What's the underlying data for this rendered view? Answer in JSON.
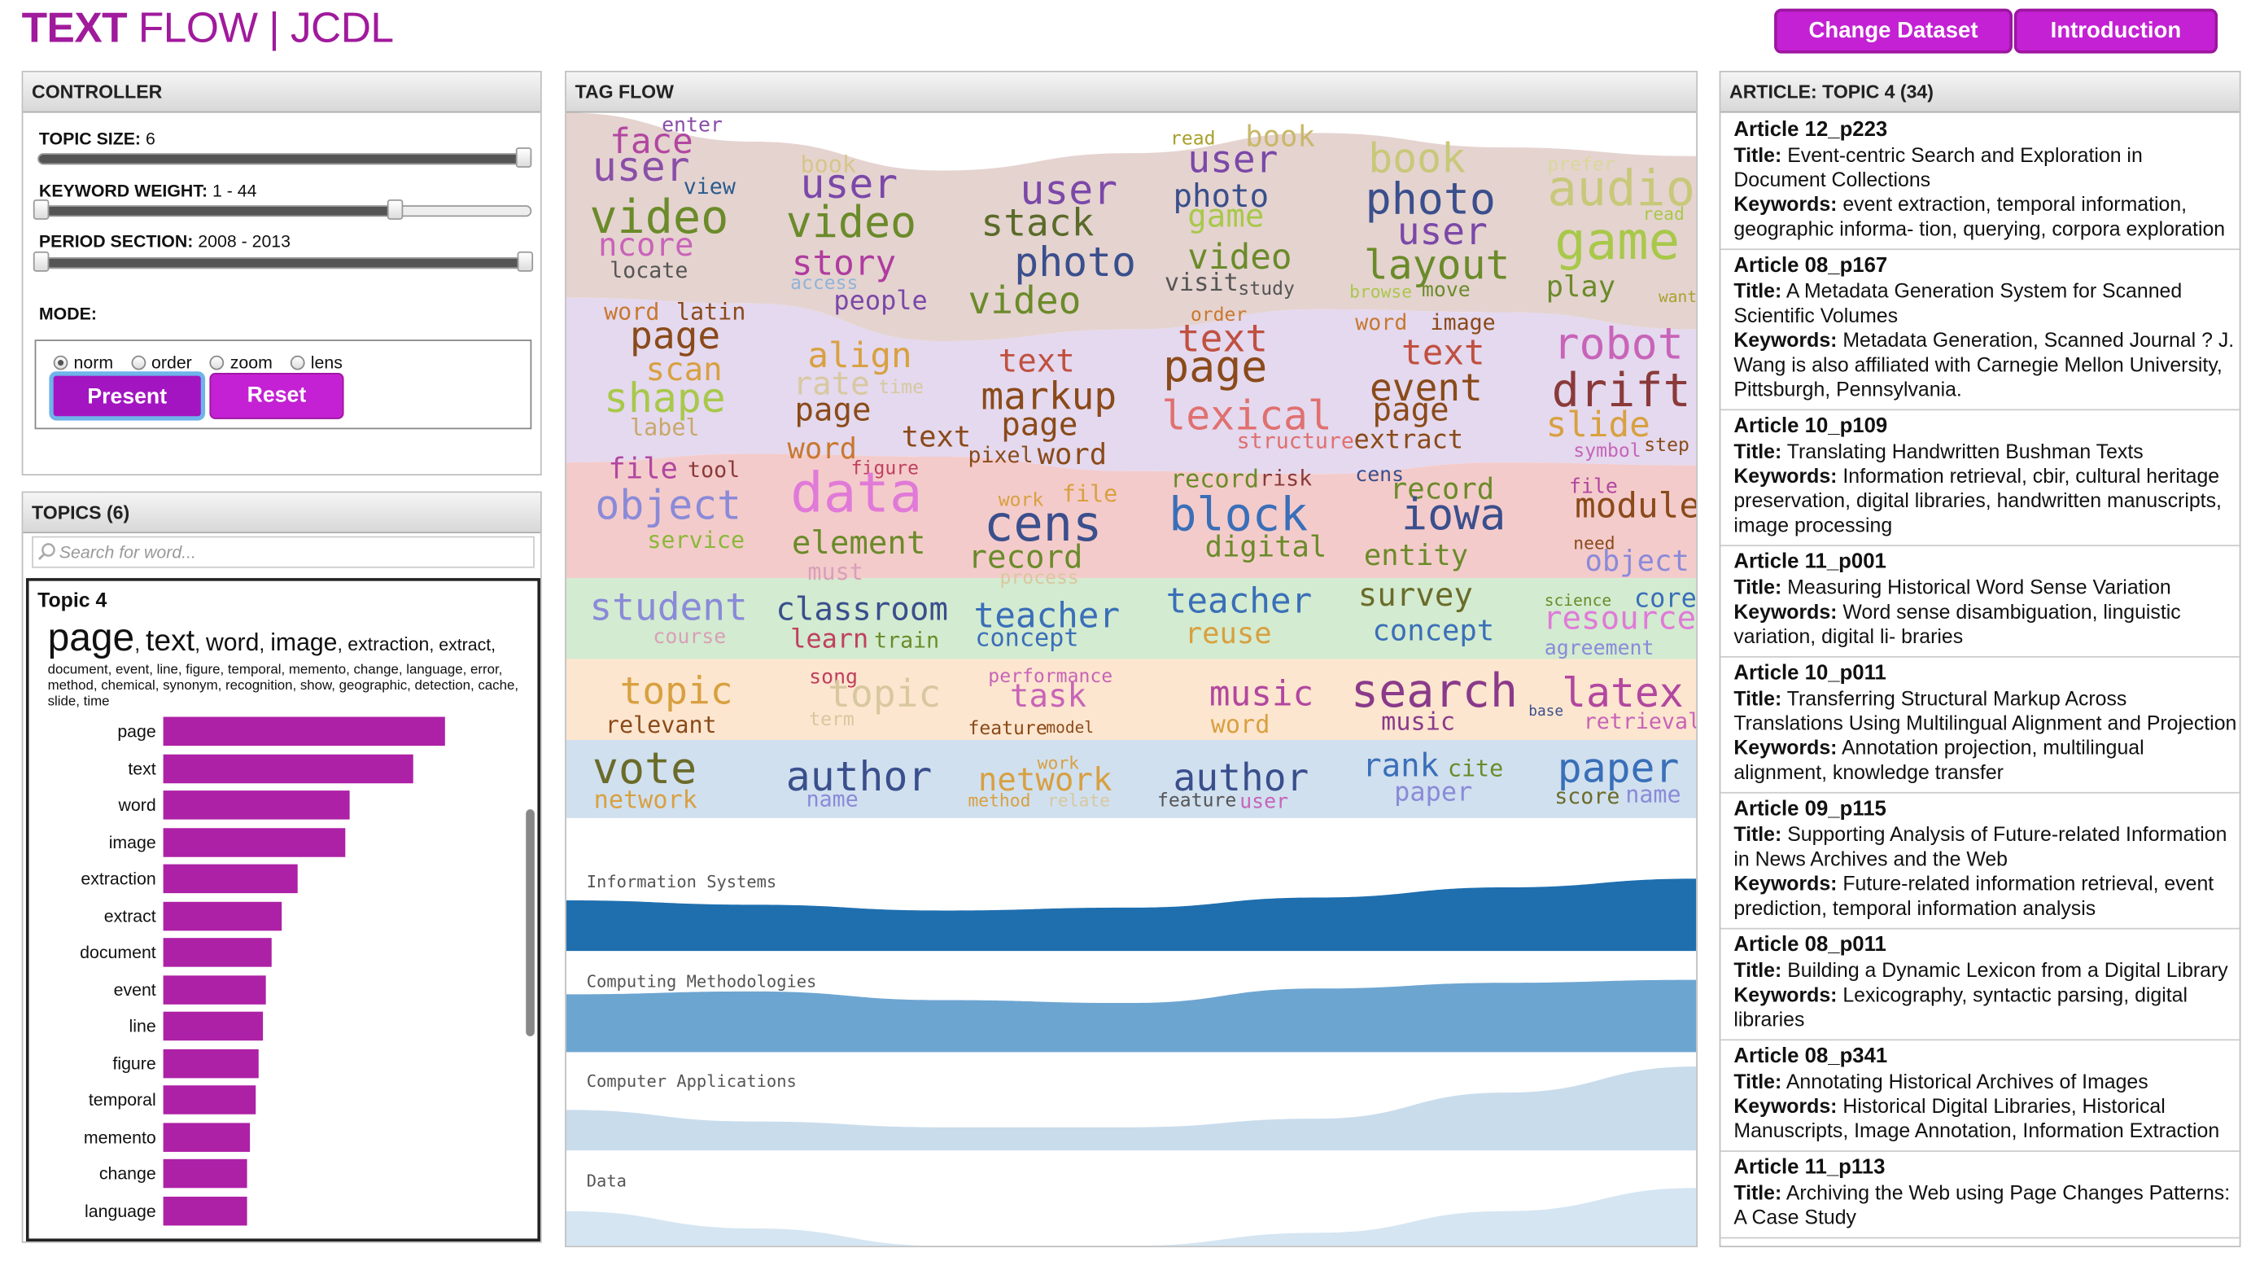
{
  "header": {
    "title_bold": "TEXT",
    "title_rest": " FLOW | JCDL",
    "change_dataset": "Change Dataset",
    "introduction": "Introduction"
  },
  "controller": {
    "heading": "CONTROLLER",
    "topic_size_label": "TOPIC SIZE:",
    "topic_size_value": "6",
    "keyword_weight_label": "KEYWORD WEIGHT:",
    "keyword_weight_value": "1 - 44",
    "period_label": "PERIOD SECTION:",
    "period_value": "2008 - 2013",
    "mode_label": "MODE:",
    "modes": [
      "norm",
      "order",
      "zoom",
      "lens"
    ],
    "selected_mode": "norm",
    "present": "Present",
    "reset": "Reset"
  },
  "topics": {
    "heading": "TOPICS (6)",
    "search_placeholder": "Search for word...",
    "topic_title": "Topic 4",
    "big_words": [
      "page",
      "text",
      "word",
      "image",
      "extraction",
      "extract,"
    ],
    "small_words": "document, event, line, figure, temporal, memento, change, language, error, method, chemical, synonym, recognition, show, geographic, detection, cache, slide, time",
    "bars": [
      {
        "label": "page",
        "value": 44
      },
      {
        "label": "text",
        "value": 39
      },
      {
        "label": "word",
        "value": 29
      },
      {
        "label": "image",
        "value": 28.5
      },
      {
        "label": "extraction",
        "value": 21
      },
      {
        "label": "extract",
        "value": 18.5
      },
      {
        "label": "document",
        "value": 17
      },
      {
        "label": "event",
        "value": 16
      },
      {
        "label": "line",
        "value": 15.5
      },
      {
        "label": "figure",
        "value": 15
      },
      {
        "label": "temporal",
        "value": 14.5
      },
      {
        "label": "memento",
        "value": 13.5
      },
      {
        "label": "change",
        "value": 13
      },
      {
        "label": "language",
        "value": 13
      }
    ]
  },
  "tagflow": {
    "heading": "TAG FLOW",
    "band_colors": [
      "#e5d3d0",
      "#e4d9ee",
      "#f4cbcb",
      "#d3ebd0",
      "#fde6cf",
      "#d0e0ef"
    ],
    "words": [
      [
        "enter",
        "#8a4fa8",
        14
      ],
      [
        "face",
        "#b247a0",
        24
      ],
      [
        "user",
        "#8a4fa8",
        28
      ],
      [
        "view",
        "#2a5b8c",
        15
      ],
      [
        "video",
        "#6b8b2a",
        32
      ],
      [
        "ncore",
        "#c864b8",
        22
      ],
      [
        "locate",
        "#555",
        15
      ],
      [
        "book",
        "#d7c58a",
        16
      ],
      [
        "user",
        "#7b48a8",
        28
      ],
      [
        "video",
        "#6b8b2a",
        30
      ],
      [
        "story",
        "#b03ca0",
        24
      ],
      [
        "access",
        "#8fb4d8",
        13
      ],
      [
        "people",
        "#7b48a8",
        18
      ],
      [
        "user",
        "#7b48a8",
        28
      ],
      [
        "stack",
        "#5a6b2a",
        26
      ],
      [
        "photo",
        "#3a4f8c",
        28
      ],
      [
        "video",
        "#6b8b2a",
        26
      ],
      [
        "read",
        "#a8a02c",
        13
      ],
      [
        "book",
        "#c8b86a",
        20
      ],
      [
        "user",
        "#7b48a8",
        26
      ],
      [
        "photo",
        "#3a4f8c",
        22
      ],
      [
        "game",
        "#a8c84a",
        22
      ],
      [
        "video",
        "#6b8b2a",
        24
      ],
      [
        "visit",
        "#555",
        17
      ],
      [
        "study",
        "#555",
        13
      ],
      [
        "book",
        "#c8c87a",
        28
      ],
      [
        "photo",
        "#3a4f8c",
        30
      ],
      [
        "user",
        "#7b48a8",
        26
      ],
      [
        "layout",
        "#6b8b2a",
        28
      ],
      [
        "browse",
        "#a8c84a",
        12
      ],
      [
        "move",
        "#6b8b2a",
        14
      ],
      [
        "prefer",
        "#d8d89a",
        13
      ],
      [
        "audio",
        "#c8c87a",
        34
      ],
      [
        "read",
        "#a8c84a",
        12
      ],
      [
        "game",
        "#a8c84a",
        36
      ],
      [
        "play",
        "#6b8b2a",
        20
      ],
      [
        "want",
        "#a8a02c",
        11
      ],
      [
        "word",
        "#c87830",
        16
      ],
      [
        "latin",
        "#8a4a1a",
        16
      ],
      [
        "page",
        "#8a4a1a",
        26
      ],
      [
        "scan",
        "#d8a040",
        22
      ],
      [
        "shape",
        "#a8c84a",
        28
      ],
      [
        "label",
        "#c8a86a",
        16
      ],
      [
        "align",
        "#d8a040",
        24
      ],
      [
        "rate",
        "#d8c8a0",
        22
      ],
      [
        "time",
        "#d8c8a0",
        13
      ],
      [
        "page",
        "#8a4a1a",
        22
      ],
      [
        "word",
        "#c87830",
        20
      ],
      [
        "text",
        "#8a4a1a",
        20
      ],
      [
        "figure",
        "#c04060",
        13
      ],
      [
        "text",
        "#c05040",
        22
      ],
      [
        "markup",
        "#8a4a1a",
        26
      ],
      [
        "page",
        "#8a4a1a",
        22
      ],
      [
        "pixel",
        "#8a4a1a",
        15
      ],
      [
        "word",
        "#8a4a1a",
        20
      ],
      [
        "order",
        "#c87830",
        13
      ],
      [
        "text",
        "#c05040",
        26
      ],
      [
        "page",
        "#8a4a1a",
        30
      ],
      [
        "lexical",
        "#e07070",
        28
      ],
      [
        "structure",
        "#e07070",
        15
      ],
      [
        "word",
        "#c87830",
        15
      ],
      [
        "image",
        "#8a4a1a",
        15
      ],
      [
        "text",
        "#c05040",
        24
      ],
      [
        "event",
        "#8a4a1a",
        26
      ],
      [
        "page",
        "#8a4a1a",
        22
      ],
      [
        "extract",
        "#8a4a1a",
        18
      ],
      [
        "robot",
        "#c864b8",
        30
      ],
      [
        "drift",
        "#8a3a3a",
        32
      ],
      [
        "slide",
        "#d8a040",
        24
      ],
      [
        "symbol",
        "#c864b8",
        13
      ],
      [
        "step",
        "#8a4a1a",
        13
      ],
      [
        "file",
        "#b247a0",
        20
      ],
      [
        "tool",
        "#8a3a3a",
        15
      ],
      [
        "object",
        "#8a8ad8",
        28
      ],
      [
        "service",
        "#8ab83a",
        16
      ],
      [
        "data",
        "#e07ad8",
        38
      ],
      [
        "element",
        "#6b8b2a",
        22
      ],
      [
        "must",
        "#d8a0b8",
        16
      ],
      [
        "work",
        "#d8a040",
        13
      ],
      [
        "file",
        "#d8a040",
        16
      ],
      [
        "cens",
        "#3a4f8c",
        34
      ],
      [
        "record",
        "#6b8b2a",
        22
      ],
      [
        "process",
        "#d8c8a0",
        13
      ],
      [
        "record",
        "#6b8b2a",
        17
      ],
      [
        "risk",
        "#8a3a3a",
        15
      ],
      [
        "block",
        "#3a6fb8",
        32
      ],
      [
        "digital",
        "#6b8b2a",
        20
      ],
      [
        "cens",
        "#3a4f8c",
        14
      ],
      [
        "record",
        "#6b8b2a",
        20
      ],
      [
        "iowa",
        "#3a4f8c",
        30
      ],
      [
        "entity",
        "#6b8b2a",
        20
      ],
      [
        "file",
        "#b247a0",
        14
      ],
      [
        "module",
        "#8a4a1a",
        24
      ],
      [
        "need",
        "#8a4a1a",
        12
      ],
      [
        "object",
        "#8a8ad8",
        20
      ],
      [
        "student",
        "#8a8ad8",
        26
      ],
      [
        "course",
        "#d8a0b8",
        14
      ],
      [
        "classroom",
        "#3a4f8c",
        22
      ],
      [
        "learn",
        "#c04060",
        18
      ],
      [
        "train",
        "#6b8b2a",
        15
      ],
      [
        "teacher",
        "#3a6fb8",
        24
      ],
      [
        "concept",
        "#3a6fb8",
        17
      ],
      [
        "teacher",
        "#3a6fb8",
        24
      ],
      [
        "reuse",
        "#d8a040",
        20
      ],
      [
        "survey",
        "#6b6b2a",
        22
      ],
      [
        "concept",
        "#3a6fb8",
        20
      ],
      [
        "science",
        "#6b8b2a",
        11
      ],
      [
        "core",
        "#3a6fb8",
        18
      ],
      [
        "resource",
        "#e07ad8",
        22
      ],
      [
        "agreement",
        "#8a8ad8",
        14
      ],
      [
        "topic",
        "#d8a040",
        26
      ],
      [
        "relevant",
        "#8a4a1a",
        16
      ],
      [
        "song",
        "#c04060",
        14
      ],
      [
        "topic",
        "#d8c8a0",
        26
      ],
      [
        "term",
        "#d8c8a0",
        13
      ],
      [
        "performance",
        "#c864b8",
        13
      ],
      [
        "task",
        "#c864b8",
        22
      ],
      [
        "feature",
        "#8a4a1a",
        13
      ],
      [
        "model",
        "#8a4a1a",
        11
      ],
      [
        "music",
        "#b247a0",
        24
      ],
      [
        "word",
        "#d8a040",
        17
      ],
      [
        "search",
        "#8a3a8a",
        32
      ],
      [
        "music",
        "#8a3a8a",
        17
      ],
      [
        "base",
        "#3a4f8c",
        10
      ],
      [
        "latex",
        "#b247a0",
        28
      ],
      [
        "retrieval",
        "#c864b8",
        15
      ],
      [
        "vote",
        "#6b6b2a",
        30
      ],
      [
        "network",
        "#d8a040",
        17
      ],
      [
        "author",
        "#3a4f8c",
        28
      ],
      [
        "name",
        "#8a8ad8",
        15
      ],
      [
        "work",
        "#d8a040",
        12
      ],
      [
        "network",
        "#d8a040",
        22
      ],
      [
        "method",
        "#d8a040",
        12
      ],
      [
        "relate",
        "#d8c8a0",
        12
      ],
      [
        "author",
        "#3a4f8c",
        26
      ],
      [
        "feature",
        "#555",
        13
      ],
      [
        "user",
        "#c864b8",
        14
      ],
      [
        "rank",
        "#3a6fb8",
        22
      ],
      [
        "cite",
        "#6b8b2a",
        16
      ],
      [
        "paper",
        "#8a8ad8",
        18
      ],
      [
        "paper",
        "#3a6fb8",
        28
      ],
      [
        "score",
        "#6b6b2a",
        15
      ],
      [
        "name",
        "#8a8ad8",
        16
      ]
    ],
    "stream_labels": [
      "Information Systems",
      "Computing Methodologies",
      "Computer Applications",
      "Data"
    ],
    "stream_colors": [
      "#1f6faf",
      "#6da5d1",
      "#c9dcec",
      "#d5e5f2"
    ]
  },
  "articles": {
    "heading": "ARTICLE: TOPIC 4 (34)",
    "title_label": "Title:",
    "keywords_label": "Keywords:",
    "items": [
      {
        "id": "Article 12_p223",
        "title": "Event-centric Search and Exploration in Document Collections",
        "keywords": "event extraction, temporal information, geographic informa- tion, querying, corpora exploration"
      },
      {
        "id": "Article 08_p167",
        "title": "A Metadata Generation System for Scanned Scientific Volumes",
        "keywords": "Metadata Generation, Scanned Journal ? J. Wang is also affiliated with Carnegie Mellon University, Pittsburgh, Pennsylvania."
      },
      {
        "id": "Article 10_p109",
        "title": "Translating Handwritten Bushman Texts",
        "keywords": "Information retrieval, cbir, cultural heritage preservation, digital libraries, handwritten manuscripts, image processing"
      },
      {
        "id": "Article 11_p001",
        "title": "Measuring Historical Word Sense Variation",
        "keywords": "Word sense disambiguation, linguistic variation, digital li- braries"
      },
      {
        "id": "Article 10_p011",
        "title": "Transferring Structural Markup Across Translations Using Multilingual Alignment and Projection",
        "keywords": "Annotation projection, multilingual alignment, knowledge transfer"
      },
      {
        "id": "Article 09_p115",
        "title": "Supporting Analysis of Future-related Information in News Archives and the Web",
        "keywords": "Future-related information retrieval, event prediction, temporal information analysis"
      },
      {
        "id": "Article 08_p011",
        "title": "Building a Dynamic Lexicon from a Digital Library",
        "keywords": "Lexicography, syntactic parsing, digital libraries"
      },
      {
        "id": "Article 08_p341",
        "title": "Annotating Historical Archives of Images",
        "keywords": "Historical Digital Libraries, Historical Manuscripts, Image Annotation, Information Extraction"
      },
      {
        "id": "Article 11_p113",
        "title": "Archiving the Web using Page Changes Patterns: A Case Study",
        "keywords": ""
      }
    ]
  }
}
